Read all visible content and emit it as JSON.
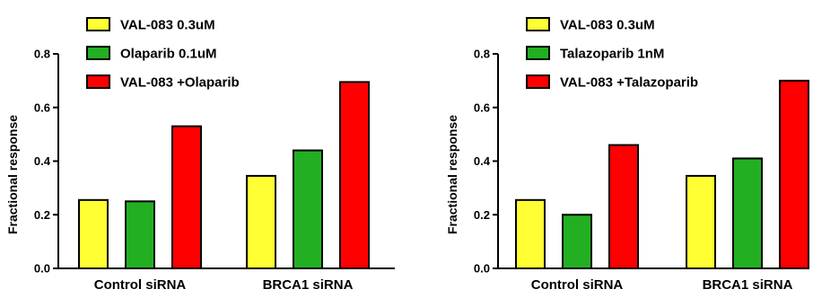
{
  "chart_data": [
    {
      "type": "bar",
      "title": "",
      "xlabel": "",
      "ylabel": "Fractional response",
      "ylim": [
        0,
        0.8
      ],
      "yticks": [
        "0.0",
        "0.2",
        "0.4",
        "0.6",
        "0.8"
      ],
      "grid": false,
      "legend_position": "top-left",
      "categories": [
        "Control siRNA",
        "BRCA1 siRNA"
      ],
      "series": [
        {
          "name": "VAL-083 0.3uM",
          "color": "#ffff33",
          "values": [
            0.255,
            0.345
          ]
        },
        {
          "name": "Olaparib 0.1uM",
          "color": "#22b022",
          "values": [
            0.25,
            0.44
          ]
        },
        {
          "name": "VAL-083 +Olaparib",
          "color": "#ff0000",
          "values": [
            0.53,
            0.695
          ]
        }
      ]
    },
    {
      "type": "bar",
      "title": "",
      "xlabel": "",
      "ylabel": "Fractional response",
      "ylim": [
        0,
        0.8
      ],
      "yticks": [
        "0.0",
        "0.2",
        "0.4",
        "0.6",
        "0.8"
      ],
      "grid": false,
      "legend_position": "top-left",
      "categories": [
        "Control siRNA",
        "BRCA1 siRNA"
      ],
      "series": [
        {
          "name": "VAL-083 0.3uM",
          "color": "#ffff33",
          "values": [
            0.255,
            0.345
          ]
        },
        {
          "name": "Talazoparib 1nM",
          "color": "#22b022",
          "values": [
            0.2,
            0.41
          ]
        },
        {
          "name": "VAL-083 +Talazoparib",
          "color": "#ff0000",
          "values": [
            0.46,
            0.7
          ]
        }
      ]
    }
  ]
}
